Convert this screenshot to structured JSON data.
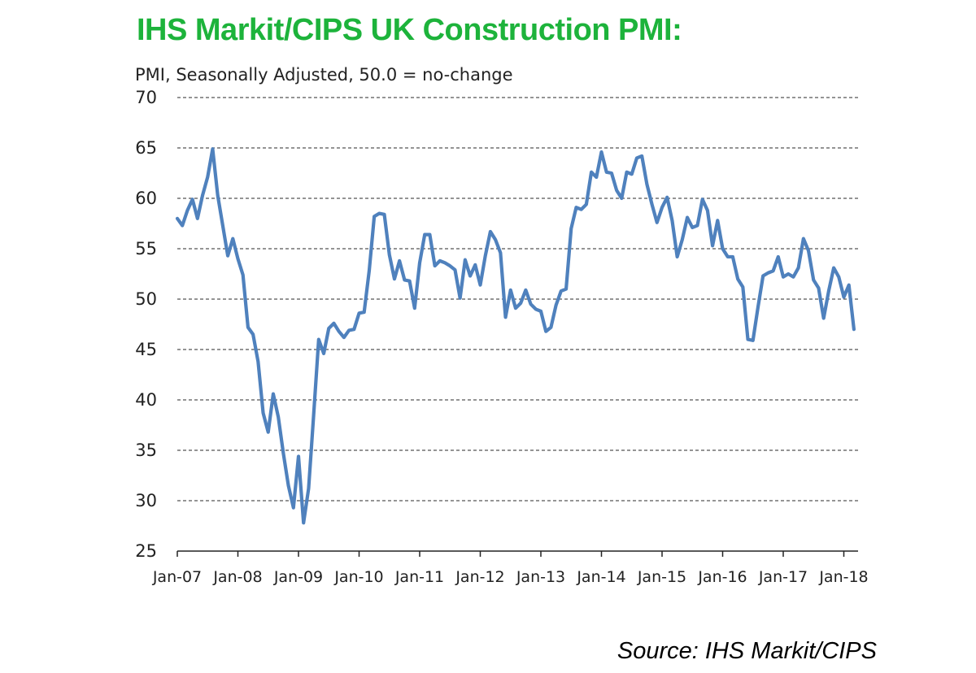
{
  "title": "IHS Markit/CIPS UK Construction PMI:",
  "subtitle": "PMI, Seasonally Adjusted, 50.0 = no-change",
  "source": "Source: IHS Markit/CIPS",
  "colors": {
    "title": "#1db33b",
    "line": "#4f81bd",
    "grid": "#555555"
  },
  "chart_data": {
    "type": "line",
    "title": "IHS Markit/CIPS UK Construction PMI:",
    "ylabel": "PMI, Seasonally Adjusted, 50.0 = no-change",
    "xlabel": "",
    "ylim": [
      25,
      70
    ],
    "yticks": [
      25,
      30,
      35,
      40,
      45,
      50,
      55,
      60,
      65,
      70
    ],
    "xticks": [
      "Jan-07",
      "Jan-08",
      "Jan-09",
      "Jan-10",
      "Jan-11",
      "Jan-12",
      "Jan-13",
      "Jan-14",
      "Jan-15",
      "Jan-16",
      "Jan-17",
      "Jan-18"
    ],
    "grid": "horizontal dashed",
    "legend": "none",
    "x_start": "Jan-07",
    "x_frequency": "monthly",
    "series": [
      {
        "values": [
          58.0,
          57.3,
          58.8,
          59.9,
          58.0,
          60.3,
          62.1,
          64.9,
          60.3,
          57.3,
          54.3,
          56.0,
          54.0,
          52.4,
          47.2,
          46.5,
          43.8,
          38.7,
          36.8,
          40.6,
          38.3,
          34.7,
          31.5,
          29.3,
          34.4,
          27.8,
          31.2,
          38.5,
          46.0,
          44.6,
          47.1,
          47.6,
          46.8,
          46.2,
          46.9,
          47.0,
          48.6,
          48.7,
          52.8,
          58.2,
          58.5,
          58.4,
          54.4,
          52.0,
          53.8,
          51.9,
          51.8,
          49.1,
          53.6,
          56.4,
          56.4,
          53.3,
          53.8,
          53.6,
          53.3,
          52.9,
          50.1,
          53.9,
          52.3,
          53.4,
          51.4,
          54.3,
          56.7,
          55.9,
          54.6,
          48.2,
          50.9,
          49.1,
          49.6,
          50.9,
          49.5,
          49.0,
          48.8,
          46.8,
          47.2,
          49.4,
          50.8,
          51.0,
          57.0,
          59.1,
          58.9,
          59.4,
          62.6,
          62.1,
          64.6,
          62.6,
          62.5,
          60.8,
          60.0,
          62.6,
          62.4,
          64.0,
          64.2,
          61.4,
          59.4,
          57.6,
          59.1,
          60.1,
          57.8,
          54.2,
          55.9,
          58.1,
          57.1,
          57.3,
          59.9,
          58.8,
          55.3,
          57.8,
          55.0,
          54.2,
          54.2,
          52.0,
          51.2,
          46.0,
          45.9,
          49.2,
          52.3,
          52.6,
          52.8,
          54.2,
          52.2,
          52.5,
          52.2,
          53.1,
          56.0,
          54.8,
          51.9,
          51.1,
          48.1,
          50.8,
          53.1,
          52.2,
          50.2,
          51.4,
          47.0
        ]
      }
    ]
  }
}
